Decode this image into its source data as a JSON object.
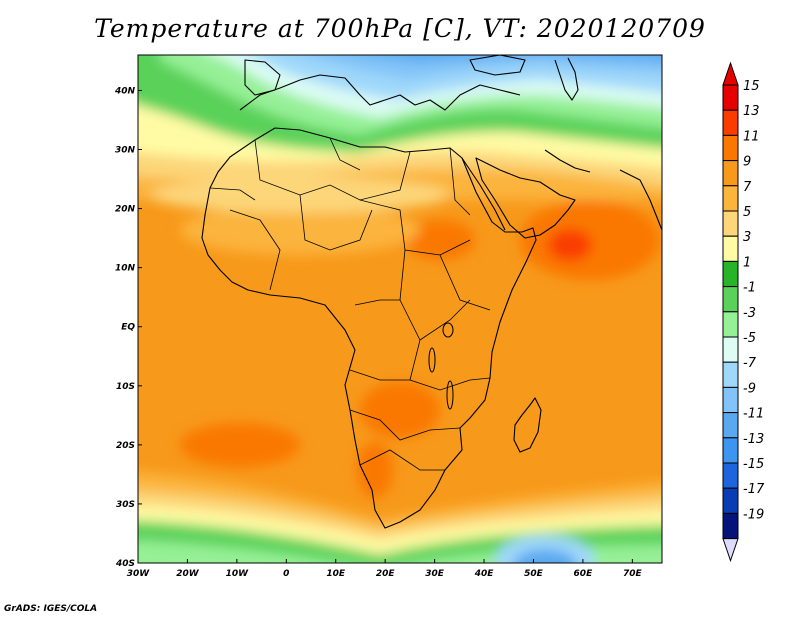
{
  "title": "Temperature at 700hPa [C], VT: 2020120709",
  "credit": "GrADS: IGES/COLA",
  "map": {
    "lon_range": [
      -30,
      76
    ],
    "lat_range": [
      -40,
      46
    ],
    "x_ticks": [
      {
        "value": -30,
        "label": "30W"
      },
      {
        "value": -20,
        "label": "20W"
      },
      {
        "value": -10,
        "label": "10W"
      },
      {
        "value": 0,
        "label": "0"
      },
      {
        "value": 10,
        "label": "10E"
      },
      {
        "value": 20,
        "label": "20E"
      },
      {
        "value": 30,
        "label": "30E"
      },
      {
        "value": 40,
        "label": "40E"
      },
      {
        "value": 50,
        "label": "50E"
      },
      {
        "value": 60,
        "label": "60E"
      },
      {
        "value": 70,
        "label": "70E"
      }
    ],
    "y_ticks": [
      {
        "value": 40,
        "label": "40N"
      },
      {
        "value": 30,
        "label": "30N"
      },
      {
        "value": 20,
        "label": "20N"
      },
      {
        "value": 10,
        "label": "10N"
      },
      {
        "value": 0,
        "label": "EQ"
      },
      {
        "value": -10,
        "label": "10S"
      },
      {
        "value": -20,
        "label": "20S"
      },
      {
        "value": -30,
        "label": "30S"
      },
      {
        "value": -40,
        "label": "40S"
      }
    ]
  },
  "colorbar": {
    "levels": [
      {
        "label": "15",
        "color": "#e60000"
      },
      {
        "label": "13",
        "color": "#fa3c00"
      },
      {
        "label": "11",
        "color": "#fa7800"
      },
      {
        "label": "9",
        "color": "#f7991a"
      },
      {
        "label": "7",
        "color": "#fbb43c"
      },
      {
        "label": "5",
        "color": "#fcd679"
      },
      {
        "label": "3",
        "color": "#fffba4"
      },
      {
        "label": "1",
        "color": "#28b428"
      },
      {
        "label": "-1",
        "color": "#5ad25a"
      },
      {
        "label": "-3",
        "color": "#96f096"
      },
      {
        "label": "-5",
        "color": "#dcfcf4"
      },
      {
        "label": "-7",
        "color": "#a0d8fa"
      },
      {
        "label": "-9",
        "color": "#82c4f8"
      },
      {
        "label": "-11",
        "color": "#5aa8f0"
      },
      {
        "label": "-13",
        "color": "#3c96f0"
      },
      {
        "label": "-15",
        "color": "#1e64dc"
      },
      {
        "label": "-17",
        "color": "#0a3cb4"
      },
      {
        "label": "-19",
        "color": "#05147a"
      }
    ],
    "top_cap_color": "#e60000",
    "bottom_cap_color": "#dcdcff"
  }
}
